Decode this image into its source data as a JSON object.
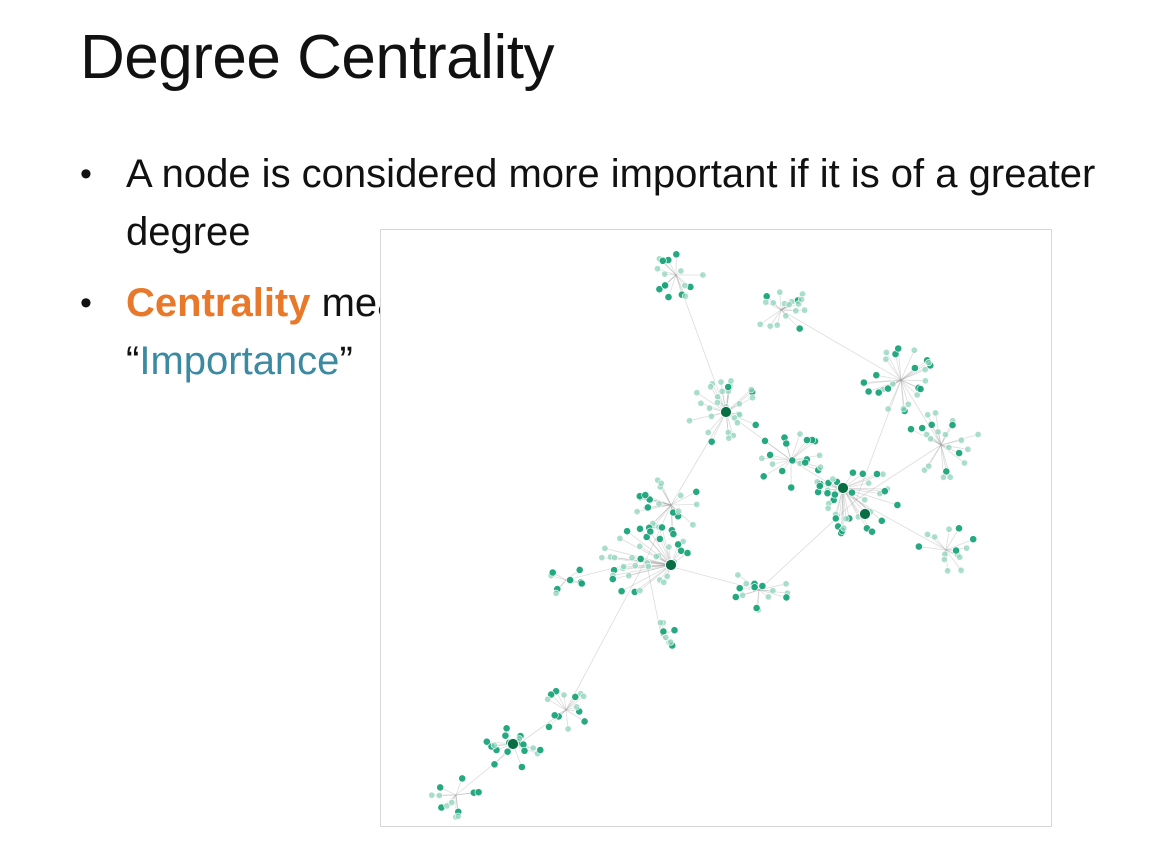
{
  "slide": {
    "title": "Degree Centrality",
    "bullets": [
      {
        "text": "A node is considered more important if it is of a greater degree"
      },
      {
        "keyword": "Centrality",
        "middle": " means",
        "open_quote": "“",
        "highlight": "Importance",
        "close_quote": "”"
      }
    ]
  },
  "colors": {
    "accent_orange": "#e8782a",
    "accent_blue": "#3b8aa2",
    "node_high_degree": "#0a6e45",
    "node_mid_degree": "#1aa37a",
    "node_low_degree": "#8fd3bb",
    "edge": "#9a9a9a"
  },
  "graph": {
    "description": "network visualization: node color and size encode degree",
    "hubs": [
      {
        "id": "hub-a",
        "degree": "high"
      },
      {
        "id": "hub-b",
        "degree": "high"
      },
      {
        "id": "hub-c",
        "degree": "high"
      },
      {
        "id": "hub-d",
        "degree": "high"
      },
      {
        "id": "hub-e",
        "degree": "high"
      }
    ]
  }
}
